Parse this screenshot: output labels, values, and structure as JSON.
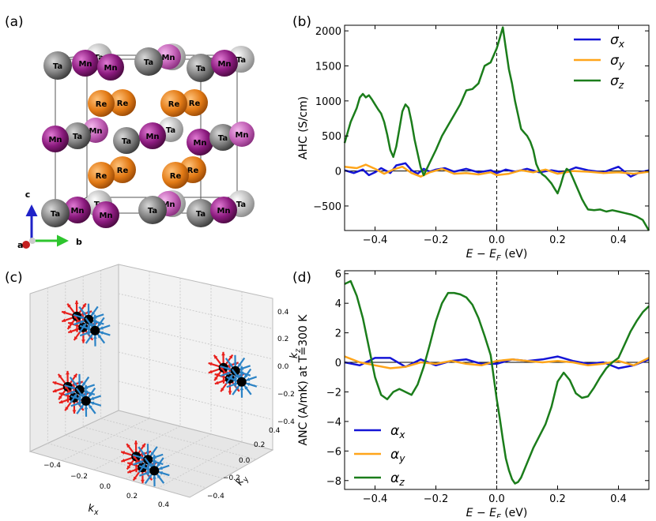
{
  "panels": {
    "a": "(a)",
    "b": "(b)",
    "c": "(c)",
    "d": "(d)"
  },
  "crystal": {
    "axis_c": "c",
    "axis_b": "b",
    "axis_a": "a",
    "atoms": [
      "Ta",
      "Mn",
      "Re"
    ],
    "colors": {
      "Ta": "#8a8a8a",
      "Ta_light": "#c4c4c4",
      "Mn": "#8b1a7e",
      "Mn_light": "#c86bbd",
      "Re": "#e37b16"
    }
  },
  "chart_data": [
    {
      "id": "b",
      "type": "line",
      "title": "",
      "xlabel": "E − E_F (eV)",
      "xlabel_main": "E − E",
      "xlabel_sub": "F",
      "xlabel_unit": " (eV)",
      "ylabel": "AHC (S/cm)",
      "xlim": [
        -0.5,
        0.5
      ],
      "ylim": [
        -850,
        2080
      ],
      "xticks": [
        -0.4,
        -0.2,
        0.0,
        0.2,
        0.4
      ],
      "xtick_labels": [
        "−0.4",
        "−0.2",
        "0.0",
        "0.2",
        "0.4"
      ],
      "yticks": [
        -500,
        0,
        500,
        1000,
        1500,
        2000
      ],
      "ytick_labels": [
        "−500",
        "0",
        "500",
        "1000",
        "1500",
        "2000"
      ],
      "legend": "top-right",
      "series": [
        {
          "name": "σx",
          "sym": "σ",
          "sub": "x",
          "color": "#1414d6",
          "x": [
            -0.5,
            -0.47,
            -0.44,
            -0.42,
            -0.4,
            -0.38,
            -0.35,
            -0.33,
            -0.3,
            -0.28,
            -0.26,
            -0.24,
            -0.22,
            -0.2,
            -0.17,
            -0.14,
            -0.1,
            -0.06,
            -0.02,
            0.0,
            0.03,
            0.06,
            0.1,
            0.14,
            0.18,
            0.22,
            0.26,
            0.3,
            0.35,
            0.4,
            0.44,
            0.47,
            0.5
          ],
          "values": [
            10,
            -30,
            20,
            -60,
            -20,
            40,
            -30,
            80,
            110,
            10,
            -40,
            30,
            -10,
            20,
            40,
            -10,
            30,
            -20,
            10,
            -30,
            20,
            -10,
            30,
            -20,
            10,
            -20,
            50,
            10,
            -20,
            60,
            -80,
            -20,
            10
          ]
        },
        {
          "name": "σy",
          "sym": "σ",
          "sub": "y",
          "color": "#ffa51a",
          "x": [
            -0.5,
            -0.46,
            -0.43,
            -0.4,
            -0.37,
            -0.34,
            -0.31,
            -0.28,
            -0.25,
            -0.22,
            -0.18,
            -0.14,
            -0.1,
            -0.06,
            -0.02,
            0.0,
            0.04,
            0.08,
            0.12,
            0.16,
            0.2,
            0.25,
            0.3,
            0.35,
            0.4,
            0.45,
            0.5
          ],
          "values": [
            60,
            40,
            90,
            30,
            -40,
            20,
            60,
            -30,
            -80,
            -20,
            30,
            -40,
            -30,
            -50,
            -20,
            -60,
            -40,
            10,
            -20,
            20,
            -40,
            0,
            -10,
            -30,
            -20,
            -40,
            -10
          ]
        },
        {
          "name": "σz",
          "sym": "σ",
          "sub": "z",
          "color": "#1b7d1b",
          "x": [
            -0.5,
            -0.48,
            -0.46,
            -0.45,
            -0.44,
            -0.43,
            -0.42,
            -0.41,
            -0.4,
            -0.39,
            -0.38,
            -0.37,
            -0.36,
            -0.35,
            -0.34,
            -0.33,
            -0.32,
            -0.31,
            -0.3,
            -0.29,
            -0.28,
            -0.27,
            -0.26,
            -0.25,
            -0.24,
            -0.23,
            -0.22,
            -0.2,
            -0.18,
            -0.16,
            -0.14,
            -0.12,
            -0.1,
            -0.08,
            -0.06,
            -0.04,
            -0.02,
            -0.01,
            0.0,
            0.01,
            0.02,
            0.03,
            0.04,
            0.05,
            0.06,
            0.07,
            0.08,
            0.09,
            0.1,
            0.11,
            0.12,
            0.13,
            0.14,
            0.15,
            0.16,
            0.17,
            0.18,
            0.19,
            0.2,
            0.21,
            0.22,
            0.23,
            0.24,
            0.25,
            0.26,
            0.27,
            0.28,
            0.29,
            0.3,
            0.32,
            0.34,
            0.36,
            0.38,
            0.4,
            0.42,
            0.44,
            0.46,
            0.48,
            0.5
          ],
          "values": [
            400,
            700,
            900,
            1050,
            1100,
            1050,
            1080,
            1020,
            950,
            880,
            820,
            700,
            520,
            300,
            200,
            350,
            600,
            850,
            950,
            900,
            700,
            450,
            250,
            50,
            -60,
            30,
            120,
            300,
            500,
            650,
            800,
            950,
            1150,
            1170,
            1250,
            1500,
            1550,
            1650,
            1750,
            1900,
            2050,
            1750,
            1450,
            1250,
            1000,
            800,
            600,
            550,
            500,
            420,
            300,
            100,
            0,
            -50,
            -80,
            -130,
            -180,
            -250,
            -320,
            -200,
            -50,
            30,
            0,
            -100,
            -200,
            -300,
            -400,
            -480,
            -550,
            -560,
            -550,
            -580,
            -560,
            -580,
            -600,
            -620,
            -650,
            -700,
            -850
          ]
        }
      ]
    },
    {
      "id": "c",
      "type": "scatter",
      "title": "",
      "xlabel": "kx",
      "xlabel_sym": "k",
      "xlabel_sub": "x",
      "ylabel": "ky",
      "ylabel_sym": "k",
      "ylabel_sub": "y",
      "zlabel": "kz",
      "zlabel_sym": "k",
      "zlabel_sub": "z",
      "xlim": [
        -0.5,
        0.5
      ],
      "ylim": [
        -0.5,
        0.5
      ],
      "zlim": [
        -0.5,
        0.5
      ],
      "xtick_labels": [
        "−0.4",
        "−0.2",
        "0.0",
        "0.2",
        "0.4"
      ],
      "ytick_labels": [
        "−0.4",
        "−0.2",
        "0.0",
        "0.2",
        "0.4"
      ],
      "ztick_labels": [
        "0.4",
        "0.2",
        "0.0",
        "−0.2",
        "−0.4"
      ],
      "source_color": "#e8201c",
      "sink_color": "#2b83c6",
      "weyl_points": [
        {
          "kx": -0.35,
          "ky": -0.35,
          "kz": 0.35,
          "kind": "source"
        },
        {
          "kx": -0.25,
          "ky": -0.35,
          "kz": 0.35,
          "kind": "sink"
        },
        {
          "kx": 0.35,
          "ky": 0.35,
          "kz": 0.0,
          "kind": "source"
        },
        {
          "kx": 0.45,
          "ky": 0.35,
          "kz": 0.0,
          "kind": "sink"
        },
        {
          "kx": -0.35,
          "ky": -0.45,
          "kz": -0.05,
          "kind": "source"
        },
        {
          "kx": -0.25,
          "ky": -0.45,
          "kz": -0.05,
          "kind": "sink"
        },
        {
          "kx": 0.15,
          "ky": -0.35,
          "kz": -0.4,
          "kind": "source"
        },
        {
          "kx": 0.25,
          "ky": -0.35,
          "kz": -0.4,
          "kind": "sink"
        }
      ]
    },
    {
      "id": "d",
      "type": "line",
      "title": "",
      "xlabel": "E − E_F (eV)",
      "xlabel_main": "E − E",
      "xlabel_sub": "F",
      "xlabel_unit": " (eV)",
      "ylabel": "ANC (A/mK) at T=300 K",
      "xlim": [
        -0.5,
        0.5
      ],
      "ylim": [
        -8.6,
        6.2
      ],
      "xticks": [
        -0.4,
        -0.2,
        0.0,
        0.2,
        0.4
      ],
      "xtick_labels": [
        "−0.4",
        "−0.2",
        "0.0",
        "0.2",
        "0.4"
      ],
      "yticks": [
        -8,
        -6,
        -4,
        -2,
        0,
        2,
        4,
        6
      ],
      "ytick_labels": [
        "−8",
        "−6",
        "−4",
        "−2",
        "0",
        "2",
        "4",
        "6"
      ],
      "legend": "bottom-left",
      "series": [
        {
          "name": "αx",
          "sym": "α",
          "sub": "x",
          "color": "#1414d6",
          "x": [
            -0.5,
            -0.45,
            -0.4,
            -0.35,
            -0.3,
            -0.25,
            -0.2,
            -0.15,
            -0.1,
            -0.05,
            0.0,
            0.05,
            0.1,
            0.15,
            0.2,
            0.25,
            0.3,
            0.35,
            0.4,
            0.45,
            0.5
          ],
          "values": [
            0.0,
            -0.2,
            0.3,
            0.3,
            -0.3,
            0.2,
            -0.2,
            0.1,
            0.2,
            -0.1,
            -0.1,
            0.2,
            0.1,
            0.2,
            0.4,
            0.1,
            -0.1,
            0.0,
            -0.4,
            -0.2,
            0.2
          ]
        },
        {
          "name": "αy",
          "sym": "α",
          "sub": "y",
          "color": "#ffa51a",
          "x": [
            -0.5,
            -0.45,
            -0.4,
            -0.35,
            -0.3,
            -0.25,
            -0.2,
            -0.15,
            -0.1,
            -0.05,
            0.0,
            0.05,
            0.1,
            0.15,
            0.2,
            0.25,
            0.3,
            0.35,
            0.4,
            0.45,
            0.5
          ],
          "values": [
            0.4,
            0.0,
            -0.2,
            -0.4,
            -0.3,
            0.0,
            -0.1,
            0.1,
            -0.1,
            -0.2,
            0.1,
            0.2,
            0.1,
            0.0,
            0.1,
            0.0,
            -0.2,
            -0.1,
            0.1,
            -0.2,
            0.3
          ]
        },
        {
          "name": "αz",
          "sym": "α",
          "sub": "z",
          "color": "#1b7d1b",
          "x": [
            -0.5,
            -0.48,
            -0.46,
            -0.44,
            -0.42,
            -0.4,
            -0.38,
            -0.36,
            -0.34,
            -0.32,
            -0.3,
            -0.28,
            -0.26,
            -0.24,
            -0.22,
            -0.2,
            -0.18,
            -0.16,
            -0.14,
            -0.12,
            -0.1,
            -0.08,
            -0.06,
            -0.04,
            -0.02,
            0.0,
            0.01,
            0.02,
            0.03,
            0.04,
            0.05,
            0.06,
            0.07,
            0.08,
            0.1,
            0.12,
            0.14,
            0.16,
            0.18,
            0.2,
            0.22,
            0.24,
            0.26,
            0.28,
            0.3,
            0.32,
            0.34,
            0.36,
            0.38,
            0.4,
            0.42,
            0.44,
            0.46,
            0.48,
            0.5
          ],
          "values": [
            5.3,
            5.5,
            4.5,
            3.0,
            1.0,
            -1.0,
            -2.2,
            -2.5,
            -2.0,
            -1.8,
            -2.0,
            -2.2,
            -1.5,
            -0.3,
            1.2,
            2.8,
            4.0,
            4.7,
            4.7,
            4.6,
            4.4,
            3.9,
            3.0,
            1.8,
            0.5,
            -2.5,
            -3.8,
            -5.2,
            -6.5,
            -7.3,
            -7.9,
            -8.2,
            -8.1,
            -7.8,
            -6.8,
            -5.8,
            -5.0,
            -4.2,
            -3.0,
            -1.3,
            -0.7,
            -1.2,
            -2.1,
            -2.4,
            -2.3,
            -1.7,
            -1.0,
            -0.4,
            0.0,
            0.3,
            1.2,
            2.1,
            2.8,
            3.4,
            3.8
          ]
        }
      ]
    }
  ]
}
